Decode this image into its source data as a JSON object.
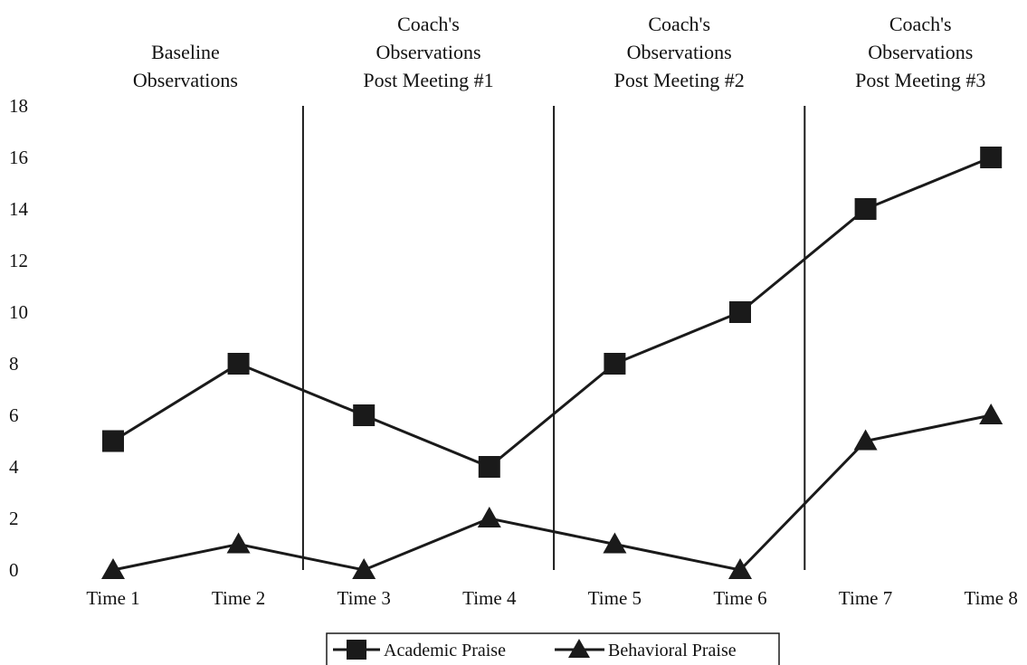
{
  "chart_data": {
    "type": "line",
    "categories": [
      "Time 1",
      "Time 2",
      "Time 3",
      "Time 4",
      "Time 5",
      "Time 6",
      "Time 7",
      "Time 8"
    ],
    "series": [
      {
        "name": "Academic Praise",
        "marker": "square",
        "values": [
          5,
          8,
          6,
          4,
          8,
          10,
          14,
          16
        ]
      },
      {
        "name": "Behavioral Praise",
        "marker": "triangle",
        "values": [
          0,
          1,
          0,
          2,
          1,
          0,
          5,
          6
        ]
      }
    ],
    "ylim": [
      0,
      18
    ],
    "yticks": [
      0,
      2,
      4,
      6,
      8,
      10,
      12,
      14,
      16,
      18
    ],
    "title": "",
    "xlabel": "",
    "ylabel": "",
    "grid": false,
    "legend_position": "bottom",
    "phase_dividers_after_index": [
      1,
      3,
      5
    ],
    "phases": [
      {
        "lines": [
          "Baseline",
          "Observations"
        ]
      },
      {
        "lines": [
          "Coach's",
          "Observations",
          "Post Meeting #1"
        ]
      },
      {
        "lines": [
          "Coach's",
          "Observations",
          "Post Meeting #2"
        ]
      },
      {
        "lines": [
          "Coach's",
          "Observations",
          "Post Meeting #3"
        ]
      }
    ],
    "colors": {
      "line": "#1a1a1a",
      "marker": "#1a1a1a",
      "text": "#111111"
    }
  }
}
